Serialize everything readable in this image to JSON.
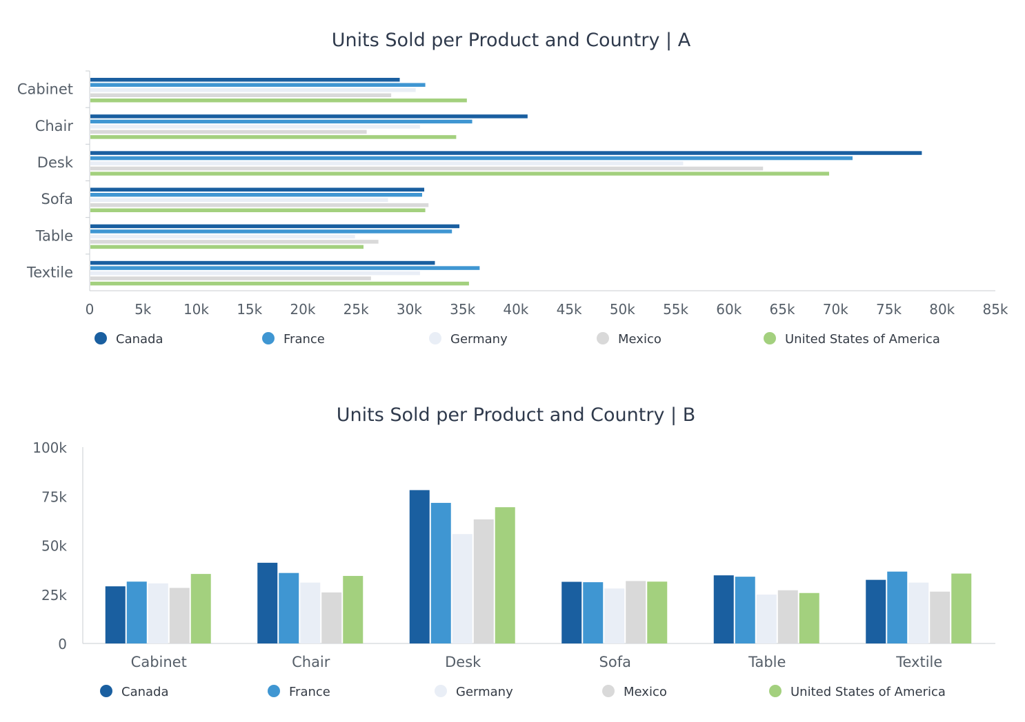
{
  "chart_data": [
    {
      "type": "bar",
      "orientation": "horizontal",
      "title": "Units Sold per Product and Country | A",
      "categories": [
        "Cabinet",
        "Chair",
        "Desk",
        "Sofa",
        "Table",
        "Textile"
      ],
      "x_ticks": [
        "0",
        "5k",
        "10k",
        "15k",
        "20k",
        "25k",
        "30k",
        "35k",
        "40k",
        "45k",
        "50k",
        "55k",
        "60k",
        "65k",
        "70k",
        "75k",
        "80k",
        "85k"
      ],
      "xlim": [
        0,
        85000
      ],
      "legend_position": "bottom",
      "series": [
        {
          "name": "Canada",
          "color": "#1a5fa0",
          "values": [
            29100,
            41100,
            78100,
            31400,
            34700,
            32400
          ]
        },
        {
          "name": "France",
          "color": "#3f96d2",
          "values": [
            31500,
            35900,
            71600,
            31200,
            34000,
            36600
          ]
        },
        {
          "name": "Germany",
          "color": "#e9eef6",
          "values": [
            30600,
            31000,
            55700,
            28000,
            24900,
            31000
          ]
        },
        {
          "name": "Mexico",
          "color": "#d9d9d9",
          "values": [
            28300,
            26000,
            63200,
            31800,
            27100,
            26400
          ]
        },
        {
          "name": "United States of America",
          "color": "#a3d07e",
          "values": [
            35400,
            34400,
            69400,
            31500,
            25700,
            35600
          ]
        }
      ]
    },
    {
      "type": "bar",
      "orientation": "vertical",
      "title": "Units Sold per Product and Country | B",
      "categories": [
        "Cabinet",
        "Chair",
        "Desk",
        "Sofa",
        "Table",
        "Textile"
      ],
      "y_ticks": [
        "0",
        "25k",
        "50k",
        "75k",
        "100k"
      ],
      "ylim": [
        0,
        100000
      ],
      "legend_position": "bottom",
      "series": [
        {
          "name": "Canada",
          "color": "#1a5fa0",
          "values": [
            29100,
            41100,
            78100,
            31400,
            34700,
            32400
          ]
        },
        {
          "name": "France",
          "color": "#3f96d2",
          "values": [
            31500,
            35900,
            71600,
            31200,
            34000,
            36600
          ]
        },
        {
          "name": "Germany",
          "color": "#e9eef6",
          "values": [
            30600,
            31000,
            55700,
            28000,
            24900,
            31000
          ]
        },
        {
          "name": "Mexico",
          "color": "#d9d9d9",
          "values": [
            28300,
            26000,
            63200,
            31800,
            27100,
            26400
          ]
        },
        {
          "name": "United States of America",
          "color": "#a3d07e",
          "values": [
            35400,
            34400,
            69400,
            31500,
            25700,
            35600
          ]
        }
      ]
    }
  ]
}
